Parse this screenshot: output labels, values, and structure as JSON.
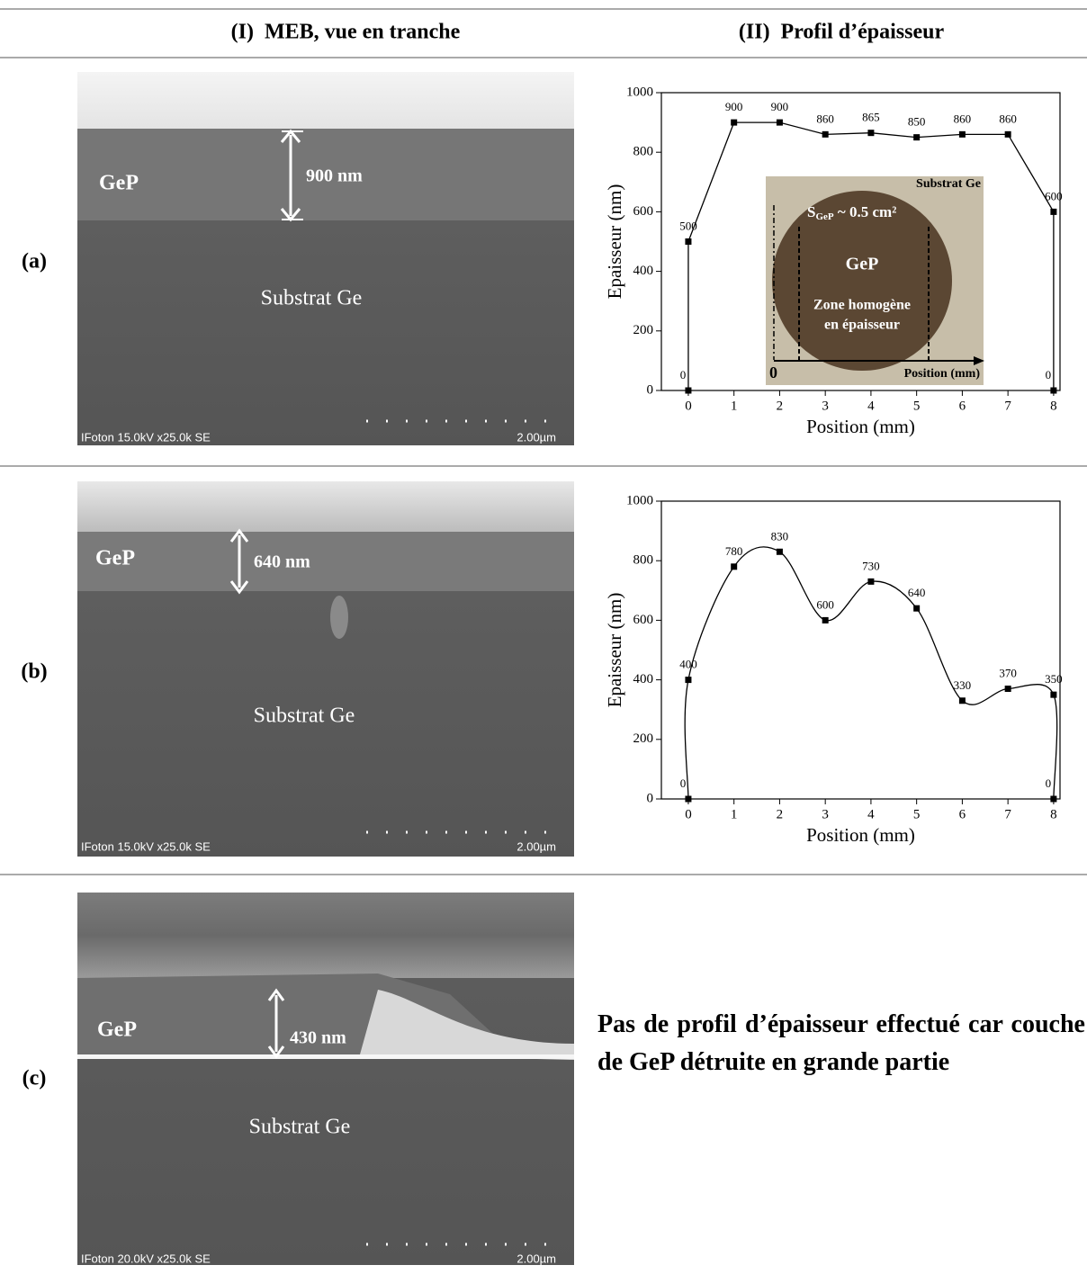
{
  "header": {
    "col1": "(I)  MEB, vue en tranche",
    "col2": "(II)  Profil d’épaisseur"
  },
  "rows": [
    {
      "label": "(a)"
    },
    {
      "label": "(b)"
    },
    {
      "label": "(c)"
    }
  ],
  "sem": [
    {
      "layer": "GeP",
      "thickness": "900 nm",
      "substrate": "Substrat Ge",
      "info": "IFoton 15.0kV x25.0k SE",
      "scale": "2.00µm"
    },
    {
      "layer": "GeP",
      "thickness": "640 nm",
      "substrate": "Substrat Ge",
      "info": "IFoton 15.0kV x25.0k SE",
      "scale": "2.00µm"
    },
    {
      "layer": "GeP",
      "thickness": "430 nm",
      "substrate": "Substrat Ge",
      "info": "IFoton 20.0kV x25.0k SE",
      "scale": "2.00µm"
    }
  ],
  "note": "Pas de profil d’épaisseur effectué car couche de GeP détruite en grande partie",
  "chart_data": [
    {
      "type": "line",
      "smooth": false,
      "color": "#000000",
      "x_label": "Position (mm)",
      "y_label": "Epaisseur (nm)",
      "x": [
        0,
        0,
        1,
        2,
        3,
        4,
        5,
        6,
        7,
        8,
        8
      ],
      "values": [
        0,
        500,
        900,
        900,
        860,
        865,
        850,
        860,
        860,
        600,
        0
      ],
      "xlim": [
        -0.59,
        8.14
      ],
      "ylim": [
        0,
        1000
      ],
      "xticks": [
        0,
        1,
        2,
        3,
        4,
        5,
        6,
        7,
        8
      ],
      "yticks": [
        0,
        200,
        400,
        600,
        800,
        1000
      ],
      "inset": {
        "corner": "Substrat Ge",
        "area_symbol": "S",
        "area_subscript": "GeP",
        "area_text": " ~ 0.5 cm²",
        "layer": "GeP",
        "zone1": "Zone homogène",
        "zone2": "en épaisseur",
        "origin": "0",
        "axis": "Position (mm)"
      }
    },
    {
      "type": "line",
      "smooth": true,
      "color": "#000000",
      "x_label": "Position (mm)",
      "y_label": "Epaisseur (nm)",
      "x": [
        0,
        0,
        1,
        2,
        3,
        4,
        5,
        6,
        7,
        8,
        8
      ],
      "values": [
        0,
        400,
        780,
        830,
        600,
        730,
        640,
        330,
        370,
        350,
        0
      ],
      "xlim": [
        -0.59,
        8.14
      ],
      "ylim": [
        0,
        1000
      ],
      "xticks": [
        0,
        1,
        2,
        3,
        4,
        5,
        6,
        7,
        8
      ],
      "yticks": [
        0,
        200,
        400,
        600,
        800,
        1000
      ]
    }
  ]
}
